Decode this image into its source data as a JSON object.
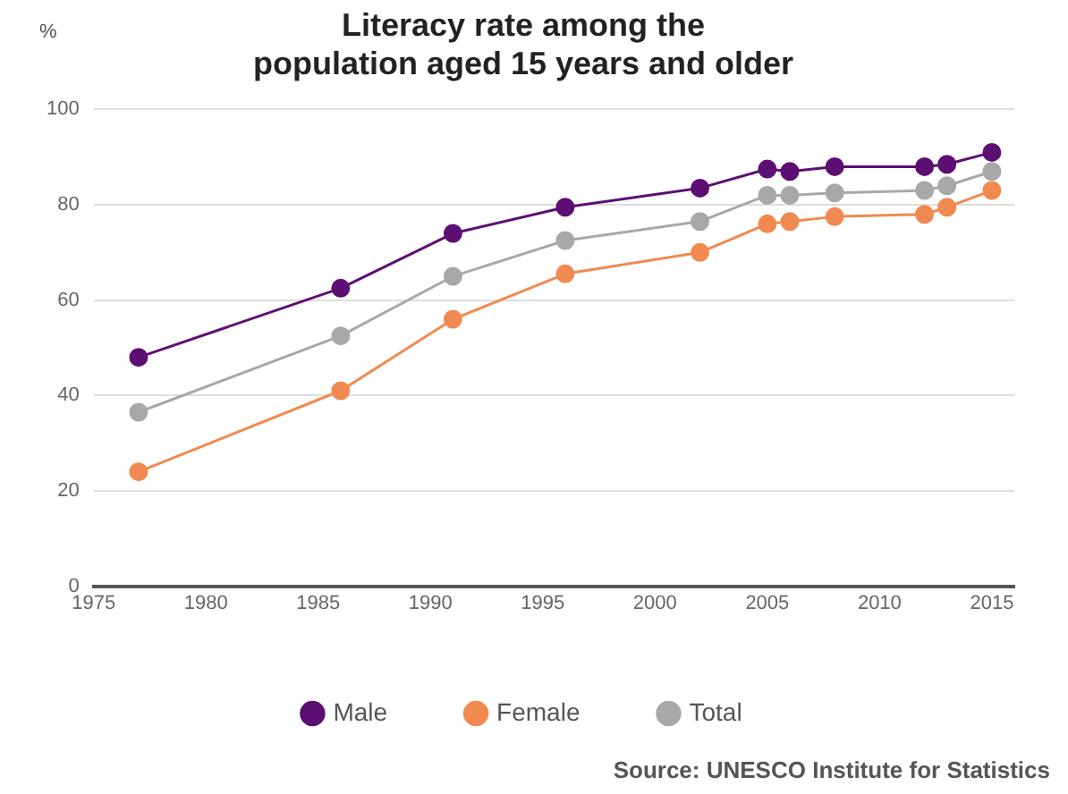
{
  "chart_data": {
    "type": "line",
    "title": "Literacy rate among the\npopulation aged 15 years and older",
    "ylabel": "%",
    "x": [
      1977,
      1986,
      1991,
      1996,
      2002,
      2005,
      2006,
      2008,
      2012,
      2013,
      2015
    ],
    "series": [
      {
        "name": "Male",
        "color": "#5c0f73",
        "values": [
          48,
          62.5,
          74,
          79.5,
          83.5,
          87.5,
          87,
          88,
          88,
          88.5,
          91
        ]
      },
      {
        "name": "Female",
        "color": "#f08a50",
        "values": [
          24,
          41,
          56,
          65.5,
          70,
          76,
          76.5,
          77.5,
          78,
          79.5,
          83
        ]
      },
      {
        "name": "Total",
        "color": "#a8a8a8",
        "values": [
          36.5,
          52.5,
          65,
          72.5,
          76.5,
          82,
          82,
          82.5,
          83,
          84,
          87
        ]
      }
    ],
    "xlim": [
      1975,
      2016
    ],
    "xticks": [
      1975,
      1980,
      1985,
      1990,
      1995,
      2000,
      2005,
      2010,
      2015
    ],
    "ylim": [
      0,
      100
    ],
    "yticks": [
      0,
      20,
      40,
      60,
      80,
      100
    ],
    "grid": "y",
    "legend": "bottom",
    "marker": "circle",
    "line_style": "solid",
    "annotations": [
      "Source: UNESCO Institute for Statistics"
    ]
  }
}
